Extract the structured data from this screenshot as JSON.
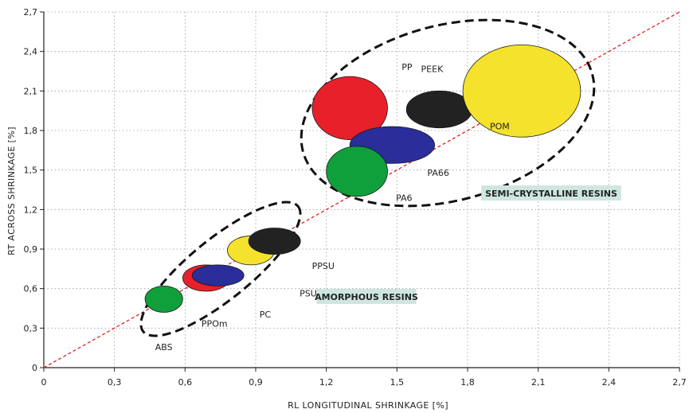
{
  "chart_data": {
    "type": "scatter",
    "xlabel": "RL LONGITUDINAL SHRINKAGE [%]",
    "ylabel": "RT ACROSS SHRINKAGE [%]",
    "xlim": [
      0,
      2.7
    ],
    "ylim": [
      0,
      2.7
    ],
    "xticks": [
      "0",
      "0,3",
      "0,6",
      "0,9",
      "1,2",
      "1,5",
      "1,8",
      "2,1",
      "2,4",
      "2,7"
    ],
    "yticks": [
      "0",
      "0,3",
      "0,6",
      "0,9",
      "1,2",
      "1,5",
      "1,8",
      "2,1",
      "2,4",
      "2,7"
    ],
    "grid": "dotted",
    "reference_line": {
      "from": [
        0,
        0
      ],
      "to": [
        2.7,
        2.7
      ],
      "color": "#e02020",
      "style": "dashed"
    },
    "materials": [
      {
        "label": "ABS",
        "x": 0.51,
        "y": 0.52,
        "rx": 0.08,
        "ry": 0.1,
        "color": "#0fa03c",
        "group": "amorphous"
      },
      {
        "label": "PPOm",
        "x": 0.69,
        "y": 0.68,
        "rx": 0.1,
        "ry": 0.1,
        "color": "#e8202a",
        "group": "amorphous"
      },
      {
        "label": "PC",
        "x": 0.74,
        "y": 0.7,
        "rx": 0.11,
        "ry": 0.08,
        "color": "#2b2d9a",
        "group": "amorphous"
      },
      {
        "label": "PSU",
        "x": 0.88,
        "y": 0.89,
        "rx": 0.1,
        "ry": 0.11,
        "color": "#f5e22c",
        "group": "amorphous"
      },
      {
        "label": "PPSU",
        "x": 0.98,
        "y": 0.96,
        "rx": 0.11,
        "ry": 0.1,
        "color": "#222222",
        "group": "amorphous"
      },
      {
        "label": "PP",
        "x": 1.3,
        "y": 1.97,
        "rx": 0.16,
        "ry": 0.24,
        "color": "#e8202a",
        "group": "semi-crystalline"
      },
      {
        "label": "PEEK",
        "x": 1.68,
        "y": 1.96,
        "rx": 0.14,
        "ry": 0.14,
        "color": "#222222",
        "group": "semi-crystalline"
      },
      {
        "label": "POM",
        "x": 2.03,
        "y": 2.1,
        "rx": 0.25,
        "ry": 0.35,
        "color": "#f5e22c",
        "group": "semi-crystalline"
      },
      {
        "label": "PA66",
        "x": 1.48,
        "y": 1.69,
        "rx": 0.18,
        "ry": 0.14,
        "color": "#2b2d9a",
        "group": "semi-crystalline"
      },
      {
        "label": "PA6",
        "x": 1.33,
        "y": 1.49,
        "rx": 0.13,
        "ry": 0.19,
        "color": "#0fa03c",
        "group": "semi-crystalline"
      }
    ],
    "groups": [
      {
        "id": "amorphous",
        "label": "AMORPHOUS RESINS",
        "label_bg": "#cfe6e0"
      },
      {
        "id": "semi-crystalline",
        "label": "SEMI-CRYSTALLINE RESINS",
        "label_bg": "#cfe6e0"
      }
    ]
  }
}
